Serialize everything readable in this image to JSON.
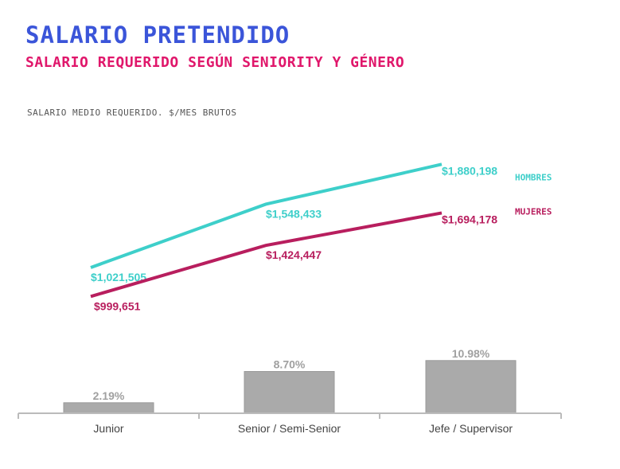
{
  "header": {
    "title": "SALARIO PRETENDIDO",
    "subtitle": "SALARIO REQUERIDO SEGÚN SENIORITY Y GÉNERO",
    "caption": "SALARIO MEDIO REQUERIDO. $/MES BRUTOS"
  },
  "chart_data": [
    {
      "type": "line",
      "categories": [
        "Junior",
        "Senior / Semi-Senior",
        "Jefe / Supervisor"
      ],
      "series": [
        {
          "name": "HOMBRES",
          "color": "#3ecfca",
          "values": [
            1021505,
            1548433,
            1880198
          ],
          "labels": [
            "$1,021,505",
            "$1,548,433",
            "$1,880,198"
          ]
        },
        {
          "name": "MUJERES",
          "color": "#b81e5e",
          "values": [
            999651,
            1424447,
            1694178
          ],
          "labels": [
            "$999,651",
            "$1,424,447",
            "$1,694,178"
          ]
        }
      ],
      "legend": "right",
      "grid": false
    },
    {
      "type": "bar",
      "categories": [
        "Junior",
        "Senior / Semi-Senior",
        "Jefe / Supervisor"
      ],
      "values": [
        2.19,
        8.7,
        10.98
      ],
      "labels": [
        "2.19%",
        "8.70%",
        "10.98%"
      ],
      "color": "#aaaaaa",
      "grid": false
    }
  ]
}
